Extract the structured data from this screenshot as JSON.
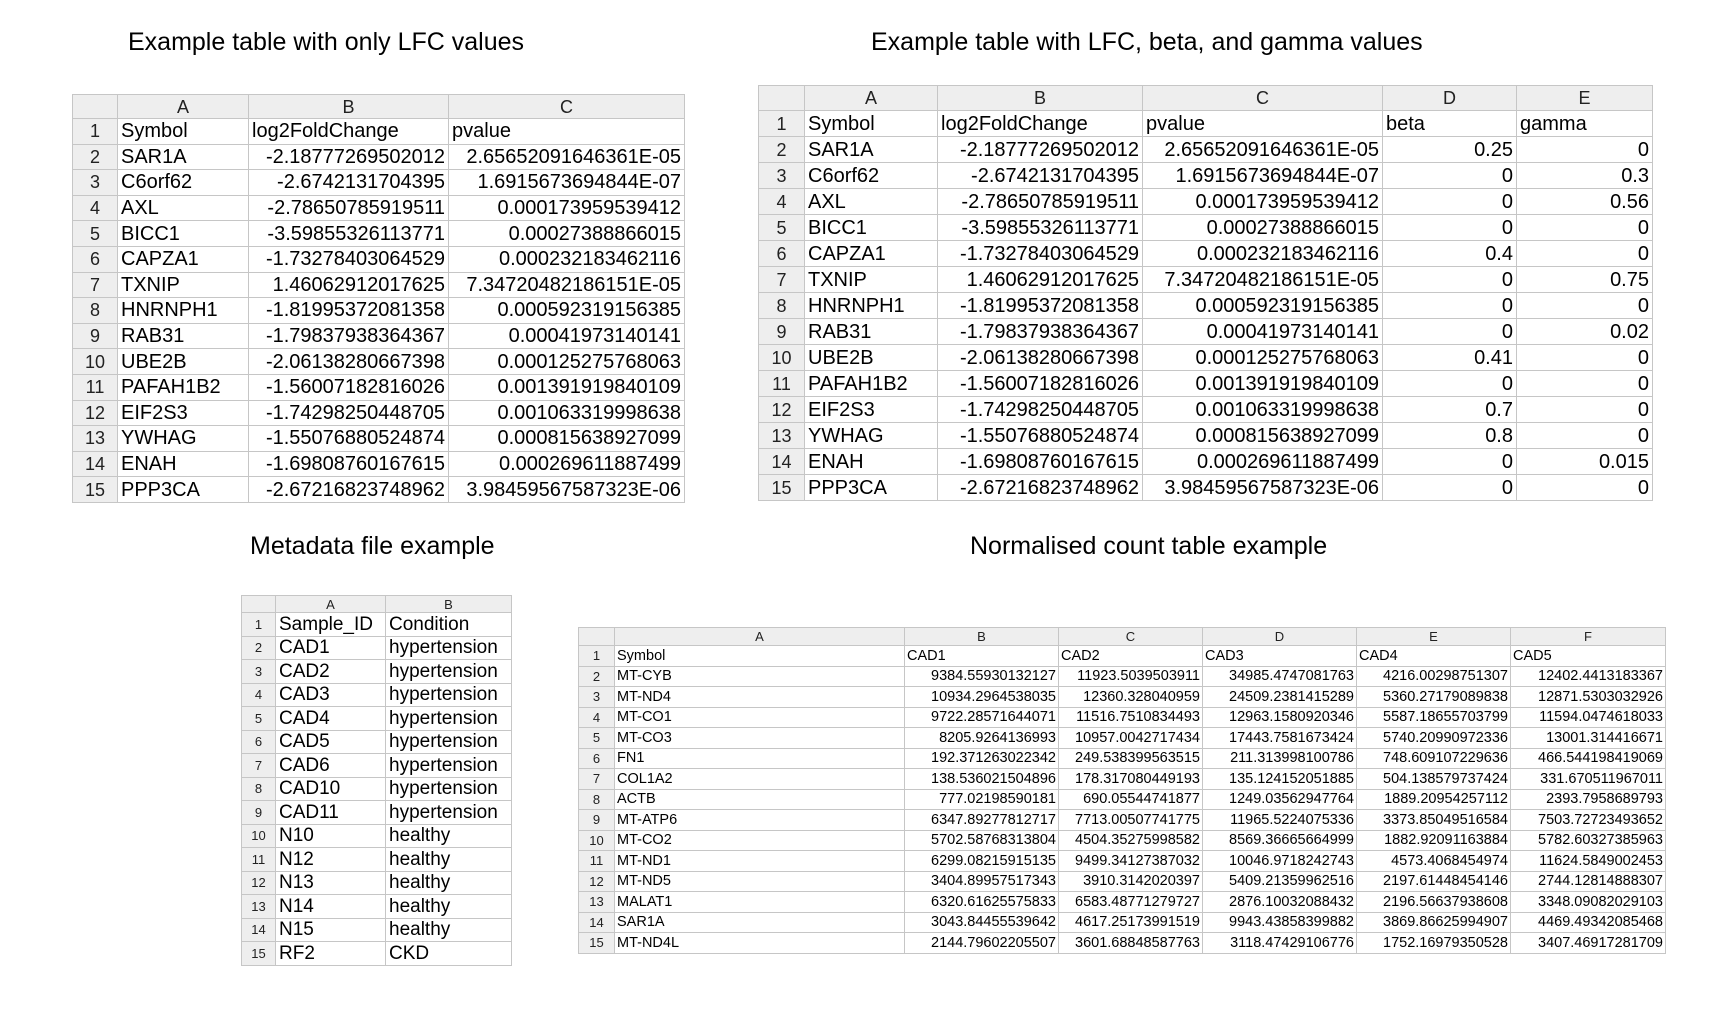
{
  "titles": {
    "lfc_only": "Example table with only LFC values",
    "lfc_beta_gamma": "Example table with LFC, beta, and gamma values",
    "metadata": "Metadata file example",
    "normalised": "Normalised count table example"
  },
  "table_lfc": {
    "col_letters": [
      "A",
      "B",
      "C"
    ],
    "rows": [
      [
        "Symbol",
        "log2FoldChange",
        "pvalue"
      ],
      [
        "SAR1A",
        "-2.18777269502012",
        "2.65652091646361E-05"
      ],
      [
        "C6orf62",
        "-2.6742131704395",
        "1.6915673694844E-07"
      ],
      [
        "AXL",
        "-2.78650785919511",
        "0.000173959539412"
      ],
      [
        "BICC1",
        "-3.59855326113771",
        "0.00027388866015"
      ],
      [
        "CAPZA1",
        "-1.73278403064529",
        "0.000232183462116"
      ],
      [
        "TXNIP",
        "1.46062912017625",
        "7.34720482186151E-05"
      ],
      [
        "HNRNPH1",
        "-1.81995372081358",
        "0.000592319156385"
      ],
      [
        "RAB31",
        "-1.79837938364367",
        "0.00041973140141"
      ],
      [
        "UBE2B",
        "-2.06138280667398",
        "0.000125275768063"
      ],
      [
        "PAFAH1B2",
        "-1.56007182816026",
        "0.001391919840109"
      ],
      [
        "EIF2S3",
        "-1.74298250448705",
        "0.001063319998638"
      ],
      [
        "YWHAG",
        "-1.55076880524874",
        "0.000815638927099"
      ],
      [
        "ENAH",
        "-1.69808760167615",
        "0.000269611887499"
      ],
      [
        "PPP3CA",
        "-2.67216823748962",
        "3.98459567587323E-06"
      ]
    ]
  },
  "table_lfc_bg": {
    "col_letters": [
      "A",
      "B",
      "C",
      "D",
      "E"
    ],
    "rows": [
      [
        "Symbol",
        "log2FoldChange",
        "pvalue",
        "beta",
        "gamma"
      ],
      [
        "SAR1A",
        "-2.18777269502012",
        "2.65652091646361E-05",
        "0.25",
        "0"
      ],
      [
        "C6orf62",
        "-2.6742131704395",
        "1.6915673694844E-07",
        "0",
        "0.3"
      ],
      [
        "AXL",
        "-2.78650785919511",
        "0.000173959539412",
        "0",
        "0.56"
      ],
      [
        "BICC1",
        "-3.59855326113771",
        "0.00027388866015",
        "0",
        "0"
      ],
      [
        "CAPZA1",
        "-1.73278403064529",
        "0.000232183462116",
        "0.4",
        "0"
      ],
      [
        "TXNIP",
        "1.46062912017625",
        "7.34720482186151E-05",
        "0",
        "0.75"
      ],
      [
        "HNRNPH1",
        "-1.81995372081358",
        "0.000592319156385",
        "0",
        "0"
      ],
      [
        "RAB31",
        "-1.79837938364367",
        "0.00041973140141",
        "0",
        "0.02"
      ],
      [
        "UBE2B",
        "-2.06138280667398",
        "0.000125275768063",
        "0.41",
        "0"
      ],
      [
        "PAFAH1B2",
        "-1.56007182816026",
        "0.001391919840109",
        "0",
        "0"
      ],
      [
        "EIF2S3",
        "-1.74298250448705",
        "0.001063319998638",
        "0.7",
        "0"
      ],
      [
        "YWHAG",
        "-1.55076880524874",
        "0.000815638927099",
        "0.8",
        "0"
      ],
      [
        "ENAH",
        "-1.69808760167615",
        "0.000269611887499",
        "0",
        "0.015"
      ],
      [
        "PPP3CA",
        "-2.67216823748962",
        "3.98459567587323E-06",
        "0",
        "0"
      ]
    ]
  },
  "table_meta": {
    "col_letters": [
      "A",
      "B"
    ],
    "rows": [
      [
        "Sample_ID",
        "Condition"
      ],
      [
        "CAD1",
        "hypertension"
      ],
      [
        "CAD2",
        "hypertension"
      ],
      [
        "CAD3",
        "hypertension"
      ],
      [
        "CAD4",
        "hypertension"
      ],
      [
        "CAD5",
        "hypertension"
      ],
      [
        "CAD6",
        "hypertension"
      ],
      [
        "CAD10",
        "hypertension"
      ],
      [
        "CAD11",
        "hypertension"
      ],
      [
        "N10",
        "healthy"
      ],
      [
        "N12",
        "healthy"
      ],
      [
        "N13",
        "healthy"
      ],
      [
        "N14",
        "healthy"
      ],
      [
        "N15",
        "healthy"
      ],
      [
        "RF2",
        "CKD"
      ]
    ]
  },
  "table_norm": {
    "col_letters": [
      "A",
      "B",
      "C",
      "D",
      "E",
      "F"
    ],
    "rows": [
      [
        "Symbol",
        "CAD1",
        "CAD2",
        "CAD3",
        "CAD4",
        "CAD5"
      ],
      [
        "MT-CYB",
        "9384.55930132127",
        "11923.5039503911",
        "34985.4747081763",
        "4216.00298751307",
        "12402.4413183367"
      ],
      [
        "MT-ND4",
        "10934.2964538035",
        "12360.328040959",
        "24509.2381415289",
        "5360.27179089838",
        "12871.5303032926"
      ],
      [
        "MT-CO1",
        "9722.28571644071",
        "11516.7510834493",
        "12963.1580920346",
        "5587.18655703799",
        "11594.0474618033"
      ],
      [
        "MT-CO3",
        "8205.9264136993",
        "10957.0042717434",
        "17443.7581673424",
        "5740.20990972336",
        "13001.314416671"
      ],
      [
        "FN1",
        "192.371263022342",
        "249.538399563515",
        "211.313998100786",
        "748.609107229636",
        "466.544198419069"
      ],
      [
        "COL1A2",
        "138.536021504896",
        "178.317080449193",
        "135.124152051885",
        "504.138579737424",
        "331.670511967011"
      ],
      [
        "ACTB",
        "777.02198590181",
        "690.05544741877",
        "1249.03562947764",
        "1889.20954257112",
        "2393.7958689793"
      ],
      [
        "MT-ATP6",
        "6347.89277812717",
        "7713.00507741775",
        "11965.5224075336",
        "3373.85049516584",
        "7503.72723493652"
      ],
      [
        "MT-CO2",
        "5702.58768313804",
        "4504.35275998582",
        "8569.36665664999",
        "1882.92091163884",
        "5782.60327385963"
      ],
      [
        "MT-ND1",
        "6299.08215915135",
        "9499.34127387032",
        "10046.9718242743",
        "4573.4068454974",
        "11624.5849002453"
      ],
      [
        "MT-ND5",
        "3404.89957517343",
        "3910.3142020397",
        "5409.21359962516",
        "2197.61448454146",
        "2744.12814888307"
      ],
      [
        "MALAT1",
        "6320.61625575833",
        "6583.48771279727",
        "2876.10032088432",
        "2196.56637938608",
        "3348.09082029103"
      ],
      [
        "SAR1A",
        "3043.84455539642",
        "4617.25173991519",
        "9943.43858399882",
        "3869.86625994907",
        "4469.49342085468"
      ],
      [
        "MT-ND4L",
        "2144.79602205507",
        "3601.68848587763",
        "3118.47429106776",
        "1752.16979350528",
        "3407.46917281709"
      ]
    ]
  }
}
